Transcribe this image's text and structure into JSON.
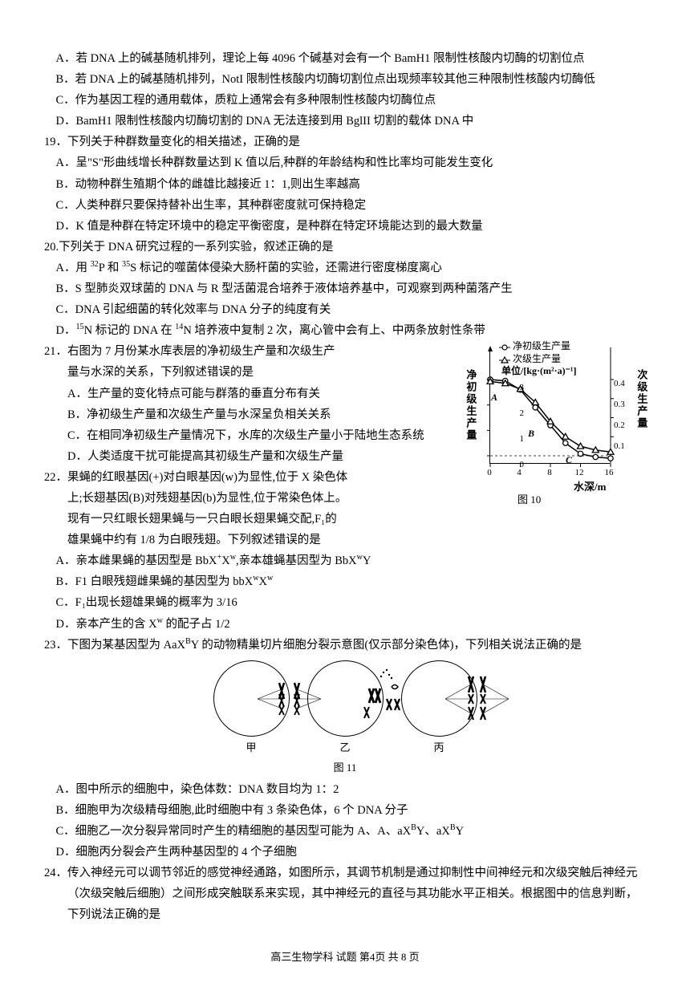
{
  "q18": {
    "optA": "A．若 DNA 上的碱基随机排列，理论上每 4096 个碱基对会有一个 BamH1 限制性核酸内切酶的切割位点",
    "optB": "B．若 DNA 上的碱基随机排列，NotI 限制性核酸内切酶切割位点出现频率较其他三种限制性核酸内切酶低",
    "optC": "C．作为基因工程的通用载体，质粒上通常会有多种限制性核酸内切酶位点",
    "optD": "D．BamH1 限制性核酸内切酶切割的 DNA 无法连接到用 BglII 切割的载体 DNA 中"
  },
  "q19": {
    "stem": "19．下列关于种群数量变化的相关描述，正确的是",
    "optA": "A．呈\"S\"形曲线增长种群数量达到 K 值以后,种群的年龄结构和性比率均可能发生变化",
    "optB": "B．动物种群生殖期个体的雌雄比越接近 1：1,则出生率越高",
    "optC": "C．人类种群只要保持替补出生率，其种群密度就可保持稳定",
    "optD": "D．K 值是种群在特定环境中的稳定平衡密度，是种群在特定环境能达到的最大数量"
  },
  "q20": {
    "stem": "20.下列关于 DNA 研究过程的一系列实验，叙述正确的是",
    "optA_pre": "A．用 ",
    "optA_mid": "P 和 ",
    "optA_post": "S 标记的噬菌体侵染大肠杆菌的实验，还需进行密度梯度离心",
    "optB": "B．S 型肺炎双球菌的 DNA 与 R 型活菌混合培养于液体培养基中，可观察到两种菌落产生",
    "optC": "C．DNA 引起细菌的转化效率与 DNA 分子的纯度有关",
    "optD_pre": "D．",
    "optD_mid": "N 标记的 DNA 在 ",
    "optD_post": "N 培养液中复制 2 次，离心管中会有上、中两条放射性条带"
  },
  "q21": {
    "stem1": "21．右图为 7 月份某水库表层的净初级生产量和次级生产",
    "stem2": "量与水深的关系，下列叙述错误的是",
    "optA": "A．生产量的变化特点可能与群落的垂直分布有关",
    "optB": "B．净初级生产量和次级生产量与水深呈负相关关系",
    "optC": "C．在相同净初级生产量情况下，水库的次级生产量小于陆地生态系统",
    "optD": "D．人类适度干扰可能提高其初级生产量和次级生产量",
    "chart": {
      "legend1": "净初级生产量",
      "legend2": "次级生产量",
      "unit": "单位/[kg·(m²·a)⁻¹]",
      "ylabel_left": "净初级生产量",
      "ylabel_right": "次级生产量",
      "xlabel": "水深/m",
      "caption": "图 10",
      "xticks": [
        "0",
        "4",
        "8",
        "12",
        "16"
      ],
      "yleft": [
        "0",
        "1",
        "2",
        "3"
      ],
      "yright": [
        "0.1",
        "0.2",
        "0.3",
        "0.4"
      ],
      "pointsA_label": "A",
      "pointsB_label": "B",
      "pointsC_label": "C",
      "series1": [
        [
          0,
          3.0
        ],
        [
          2,
          2.95
        ],
        [
          4,
          2.6
        ],
        [
          6,
          1.9
        ],
        [
          8,
          1.2
        ],
        [
          10,
          0.5
        ],
        [
          12,
          0.08
        ],
        [
          14,
          -0.05
        ],
        [
          16,
          -0.1
        ]
      ],
      "series2": [
        [
          0,
          0.39
        ],
        [
          2,
          0.38
        ],
        [
          4,
          0.35
        ],
        [
          6,
          0.28
        ],
        [
          8,
          0.18
        ],
        [
          10,
          0.1
        ],
        [
          12,
          0.05
        ],
        [
          14,
          0.03
        ],
        [
          16,
          0.02
        ]
      ],
      "colors": {
        "axis": "#000",
        "bg": "#fff"
      }
    }
  },
  "q22": {
    "stem1": "22．果蝇的红眼基因(+)对白眼基因(w)为显性,位于 X 染色体",
    "stem2": "上;长翅基因(B)对残翅基因(b)为显性,位于常染色体上。",
    "stem3": "现有一只红眼长翅果蝇与一只白眼长翅果蝇交配,F₁的",
    "stem4": "雄果蝇中约有 1/8 为白眼残翅。下列叙述错误的是",
    "optA": "A．亲本雌果蝇的基因型是 BbXᵂXʷ,亲本雄蝇基因型为 BbXʷY",
    "optB": "B．F1 白眼残翅雌果蝇的基因型为 bbXʷXʷ",
    "optC": "C．F₁出现长翅雄果蝇的概率为 3/16",
    "optD": "D．亲本产生的含 Xʷ 的配子占 1/2"
  },
  "q23": {
    "stem": "23．下图为某基因型为 AaXᴮY 的动物精巢切片细胞分裂示意图(仅示部分染色体)，下列相关说法正确的是",
    "label1": "甲",
    "label2": "乙",
    "label3": "丙",
    "caption": "图 11",
    "optA": "A．图中所示的细胞中，染色体数：DNA 数目均为 1：2",
    "optB": "B．细胞甲为次级精母细胞,此时细胞中有 3 条染色体，6 个 DNA 分子",
    "optC": "C．细胞乙一次分裂异常同时产生的精细胞的基因型可能为 A、A、aXᴮY、aXᴮY",
    "optD": "D．细胞丙分裂会产生两种基因型的 4 个子细胞"
  },
  "q24": {
    "stem": "24．传入神经元可以调节邻近的感觉神经通路，如图所示，其调节机制是通过抑制性中间神经元和次级突触后神经元（次级突触后细胞）之间形成突触联系来实现，其中神经元的直径与其功能水平正相关。根据图中的信息判断，下列说法正确的是"
  },
  "footer": "高三生物学科 试题 第4页 共 8 页"
}
